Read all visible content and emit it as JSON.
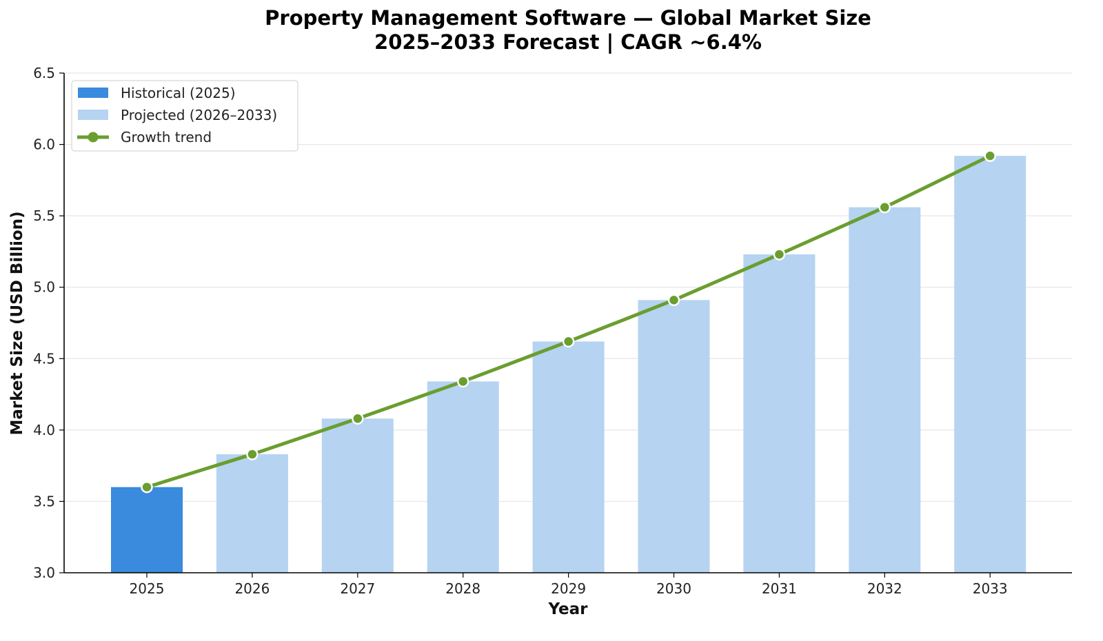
{
  "chart_data": {
    "type": "bar",
    "title": "Property Management Software — Global Market Size",
    "subtitle": "2025–2033 Forecast | CAGR ~6.4%",
    "xlabel": "Year",
    "ylabel": "Market Size (USD Billion)",
    "categories": [
      "2025",
      "2026",
      "2027",
      "2028",
      "2029",
      "2030",
      "2031",
      "2032",
      "2033"
    ],
    "series": [
      {
        "name": "Historical (2025)",
        "kind": "bar",
        "color": "#3a8ade",
        "values": [
          3.6,
          null,
          null,
          null,
          null,
          null,
          null,
          null,
          null
        ]
      },
      {
        "name": "Projected (2026–2033)",
        "kind": "bar",
        "color": "#b6d3f1",
        "values": [
          null,
          3.83,
          4.08,
          4.34,
          4.62,
          4.91,
          5.23,
          5.56,
          5.92
        ]
      },
      {
        "name": "Growth trend",
        "kind": "line",
        "color": "#6a9e2f",
        "values": [
          3.6,
          3.83,
          4.08,
          4.34,
          4.62,
          4.91,
          5.23,
          5.56,
          5.92
        ]
      }
    ],
    "ylim": [
      3.0,
      6.5
    ],
    "yticks": [
      "3.0",
      "3.5",
      "4.0",
      "4.5",
      "5.0",
      "5.5",
      "6.0",
      "6.5"
    ],
    "ytick_values": [
      3.0,
      3.5,
      4.0,
      4.5,
      5.0,
      5.5,
      6.0,
      6.5
    ],
    "grid": "horizontal",
    "legend_position": "top-left",
    "legend": [
      {
        "label": "Historical (2025)",
        "marker": "patch",
        "color": "#3a8ade"
      },
      {
        "label": "Projected (2026–2033)",
        "marker": "patch",
        "color": "#b6d3f1"
      },
      {
        "label": "Growth trend",
        "marker": "line-dot",
        "color": "#6a9e2f"
      }
    ]
  }
}
